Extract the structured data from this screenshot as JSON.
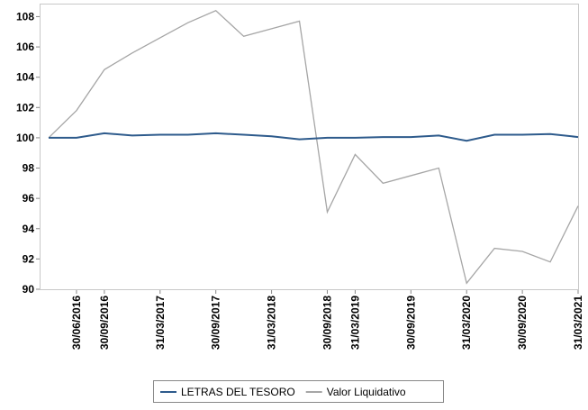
{
  "chart_data": {
    "type": "line",
    "categories": [
      null,
      "30/06/2016",
      "30/09/2016",
      null,
      "31/03/2017",
      null,
      "30/09/2017",
      null,
      "31/03/2018",
      null,
      "30/09/2018",
      "31/03/2019",
      null,
      "30/09/2019",
      null,
      "31/03/2020",
      null,
      "30/09/2020",
      null,
      "31/03/2021"
    ],
    "series": [
      {
        "name": "LETRAS DEL TESORO",
        "color": "#2e5b8c",
        "values": [
          100,
          100,
          100.3,
          100.15,
          100.2,
          100.2,
          100.3,
          100.2,
          100.1,
          99.9,
          100.0,
          100.0,
          100.05,
          100.05,
          100.15,
          99.8,
          100.2,
          100.2,
          100.25,
          100.05
        ]
      },
      {
        "name": "Valor Liquidativo",
        "color": "#a6a6a6",
        "values": [
          100,
          101.8,
          104.5,
          105.6,
          106.6,
          107.6,
          108.4,
          106.7,
          107.2,
          107.7,
          95.1,
          98.9,
          97.0,
          97.5,
          98.0,
          90.4,
          92.7,
          92.5,
          91.8,
          95.5
        ]
      }
    ],
    "ylim": [
      90,
      108.8
    ],
    "yticks": [
      90,
      92,
      94,
      96,
      98,
      100,
      102,
      104,
      106,
      108
    ]
  }
}
